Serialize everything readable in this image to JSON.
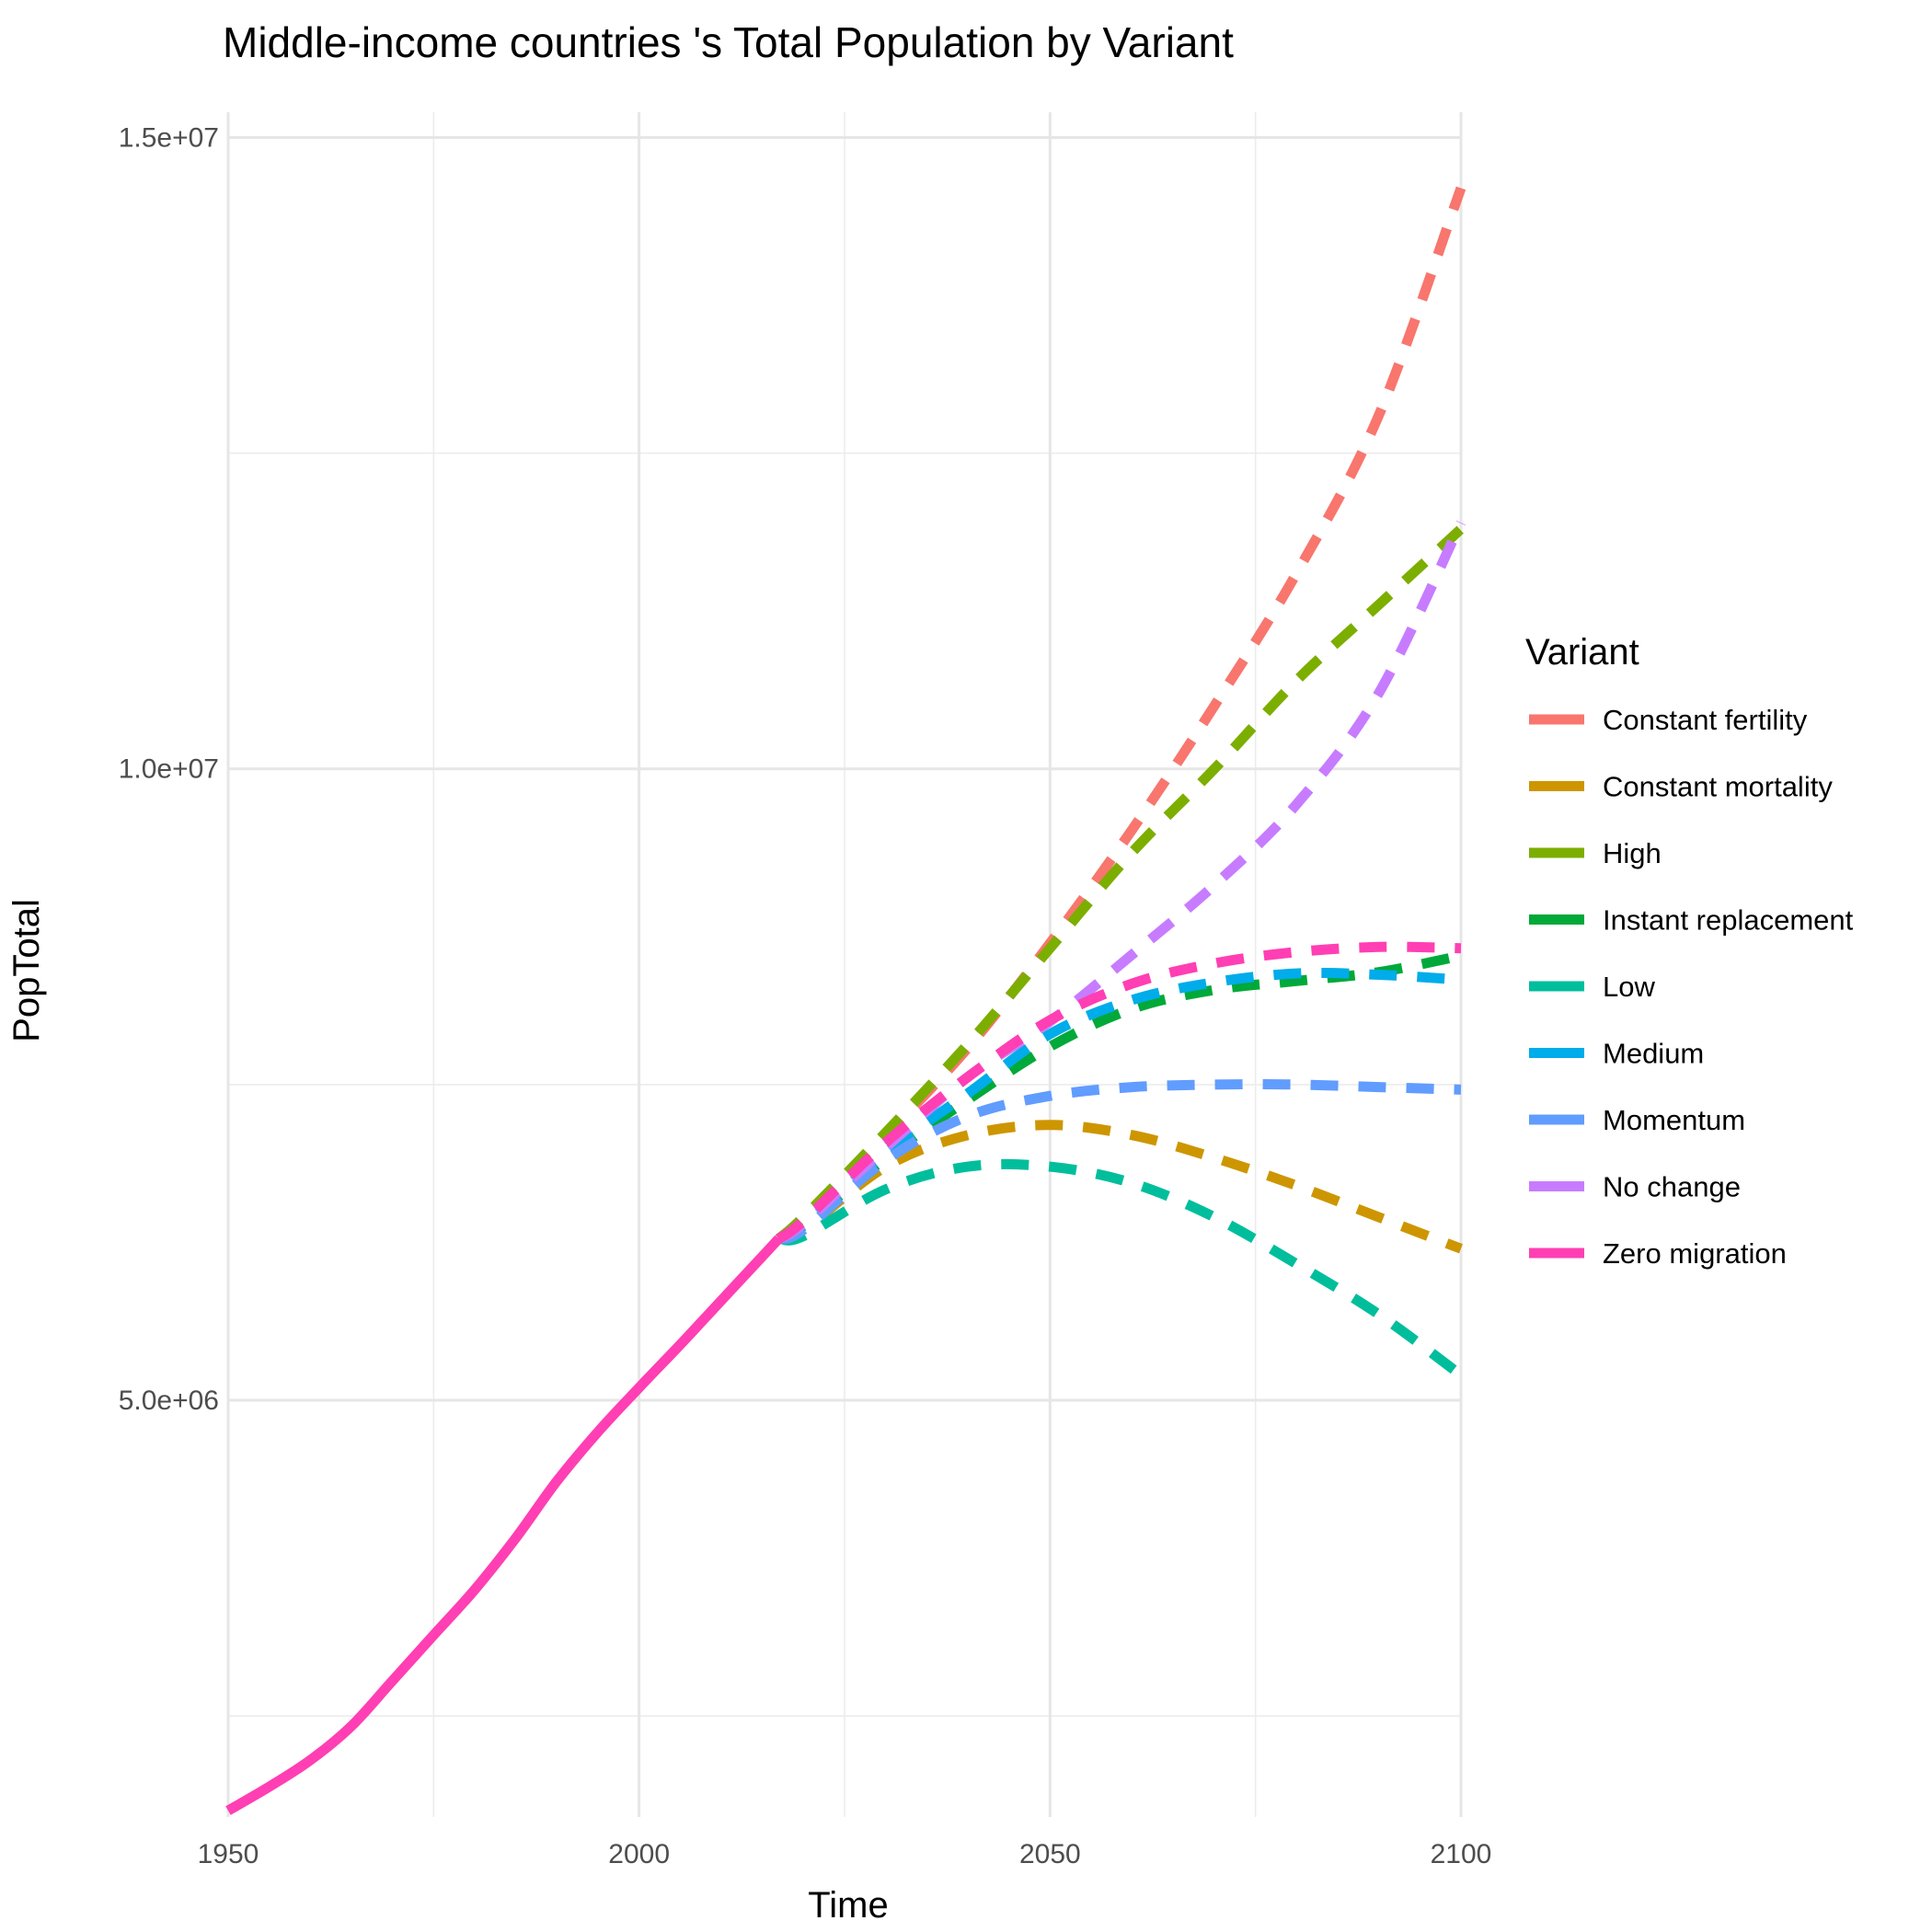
{
  "chart_data": {
    "type": "line",
    "title": "Middle-income countries 's Total Population by Variant",
    "xlabel": "Time",
    "ylabel": "PopTotal",
    "xlim": [
      1950,
      2100
    ],
    "ylim": [
      1700000,
      15200000
    ],
    "x_ticks": [
      1950,
      2000,
      2050,
      2100
    ],
    "x_tick_labels": [
      "1950",
      "2000",
      "2050",
      "2100"
    ],
    "y_ticks": [
      5000000,
      10000000,
      15000000
    ],
    "y_tick_labels": [
      "5.0e+06",
      "1.0e+07",
      "1.5e+07"
    ],
    "y_minor_ticks": [
      2500000,
      7500000,
      12500000
    ],
    "x_minor_ticks": [
      1975,
      2025,
      2075
    ],
    "grid": true,
    "legend": {
      "title": "Variant",
      "position": "right"
    },
    "historical": {
      "name": "Zero migration",
      "x": [
        1950,
        1955,
        1960,
        1965,
        1970,
        1975,
        1980,
        1985,
        1990,
        1995,
        2000,
        2005,
        2010,
        2015,
        2017
      ],
      "values": [
        1750000,
        1940000,
        2150000,
        2420000,
        2780000,
        3140000,
        3500000,
        3910000,
        4360000,
        4750000,
        5100000,
        5440000,
        5790000,
        6140000,
        6280000
      ]
    },
    "series": [
      {
        "name": "Constant fertility",
        "color": "#F8766D",
        "x": [
          2020,
          2030,
          2040,
          2050,
          2060,
          2070,
          2080,
          2090,
          2100
        ],
        "values": [
          6450000,
          7100000,
          7790000,
          8620000,
          9520000,
          10500000,
          11550000,
          12800000,
          14600000
        ]
      },
      {
        "name": "Constant mortality",
        "color": "#CD9600",
        "x": [
          2020,
          2030,
          2040,
          2050,
          2060,
          2070,
          2080,
          2090,
          2100
        ],
        "values": [
          6350000,
          6850000,
          7100000,
          7180000,
          7100000,
          6920000,
          6700000,
          6450000,
          6200000
        ]
      },
      {
        "name": "High",
        "color": "#7CAE00",
        "x": [
          2020,
          2030,
          2040,
          2050,
          2060,
          2070,
          2080,
          2090,
          2100
        ],
        "values": [
          6450000,
          7120000,
          7820000,
          8580000,
          9340000,
          10000000,
          10700000,
          11300000,
          11900000
        ]
      },
      {
        "name": "Instant replacement",
        "color": "#00A939",
        "x": [
          2020,
          2030,
          2040,
          2050,
          2060,
          2070,
          2080,
          2090,
          2100
        ],
        "values": [
          6380000,
          6920000,
          7380000,
          7800000,
          8100000,
          8250000,
          8320000,
          8390000,
          8520000
        ]
      },
      {
        "name": "Low",
        "color": "#00BE9C",
        "x": [
          2020,
          2030,
          2040,
          2050,
          2060,
          2070,
          2080,
          2090,
          2100
        ],
        "values": [
          6300000,
          6670000,
          6850000,
          6850000,
          6720000,
          6450000,
          6080000,
          5680000,
          5200000
        ]
      },
      {
        "name": "Medium",
        "color": "#00ACE9",
        "x": [
          2020,
          2030,
          2040,
          2050,
          2060,
          2070,
          2080,
          2090,
          2100
        ],
        "values": [
          6380000,
          6960000,
          7430000,
          7900000,
          8170000,
          8310000,
          8380000,
          8370000,
          8330000
        ]
      },
      {
        "name": "Momentum",
        "color": "#619CFF",
        "x": [
          2020,
          2030,
          2040,
          2050,
          2060,
          2070,
          2080,
          2090,
          2100
        ],
        "values": [
          6350000,
          6900000,
          7250000,
          7410000,
          7480000,
          7500000,
          7500000,
          7480000,
          7460000
        ]
      },
      {
        "name": "No change",
        "color": "#C77CFF",
        "x": [
          2020,
          2030,
          2040,
          2050,
          2060,
          2070,
          2080,
          2090,
          2100
        ],
        "values": [
          6400000,
          7000000,
          7560000,
          8000000,
          8530000,
          9080000,
          9720000,
          10600000,
          11950000
        ]
      },
      {
        "name": "Zero migration",
        "color": "#FF3FB3",
        "x": [
          2020,
          2030,
          2040,
          2050,
          2060,
          2070,
          2080,
          2090,
          2100
        ],
        "values": [
          6420000,
          7040000,
          7560000,
          8010000,
          8300000,
          8460000,
          8550000,
          8590000,
          8580000
        ]
      }
    ]
  }
}
